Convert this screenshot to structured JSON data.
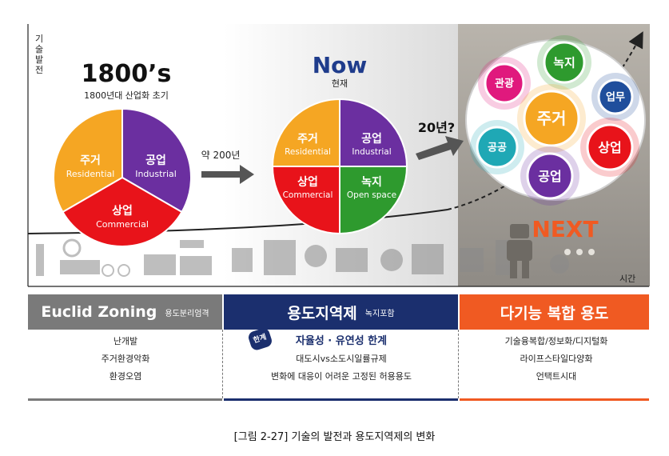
{
  "axis": {
    "y_label": "기술발전",
    "x_label": "시간"
  },
  "era1800": {
    "title": "1800’s",
    "subtitle": "1800년대 산업화 초기",
    "slices": [
      {
        "ko": "주거",
        "en": "Residential",
        "color": "#f5a623"
      },
      {
        "ko": "공업",
        "en": "Industrial",
        "color": "#6b2fa0"
      },
      {
        "ko": "상업",
        "en": "Commercial",
        "color": "#e8131a"
      }
    ]
  },
  "transition1": "약 200년",
  "now": {
    "title": "Now",
    "subtitle": "현재",
    "quadrants": [
      {
        "ko": "주거",
        "en": "Residential",
        "color": "#f5a623"
      },
      {
        "ko": "공업",
        "en": "Industrial",
        "color": "#6b2fa0"
      },
      {
        "ko": "상업",
        "en": "Commercial",
        "color": "#e8131a"
      },
      {
        "ko": "녹지",
        "en": "Open space",
        "color": "#2e9a2e"
      }
    ]
  },
  "transition2": "20년?",
  "next": {
    "label": "NEXT",
    "bubbles": [
      {
        "label": "관광",
        "color": "#e0197d"
      },
      {
        "label": "녹지",
        "color": "#2e9a2e"
      },
      {
        "label": "업무",
        "color": "#1f4e9c"
      },
      {
        "label": "주거",
        "color": "#f5a623"
      },
      {
        "label": "공공",
        "color": "#1fa8b5"
      },
      {
        "label": "상업",
        "color": "#e8131a"
      },
      {
        "label": "공업",
        "color": "#6b2fa0"
      }
    ]
  },
  "panels": [
    {
      "title": "Euclid Zoning",
      "subtitle": "용도분리엄격",
      "color": "#7a7a7a",
      "items": [
        "난개발",
        "주거환경악화",
        "환경오염"
      ]
    },
    {
      "title": "용도지역제",
      "subtitle": "녹지포함",
      "color": "#1b2f6e",
      "badge": "한계",
      "heading": "자율성 · 유연성 한계",
      "items": [
        "대도시vs소도시일률규제",
        "변화에 대응이 어려운 고정된 허용용도"
      ]
    },
    {
      "title": "다기능 복합 용도",
      "subtitle": "",
      "color": "#f05a22",
      "items": [
        "기술융복합/정보화/디지털화",
        "라이프스타일다양화",
        "언택트시대"
      ]
    }
  ],
  "caption": "[그림 2-27] 기술의 발전과 용도지역제의 변화"
}
